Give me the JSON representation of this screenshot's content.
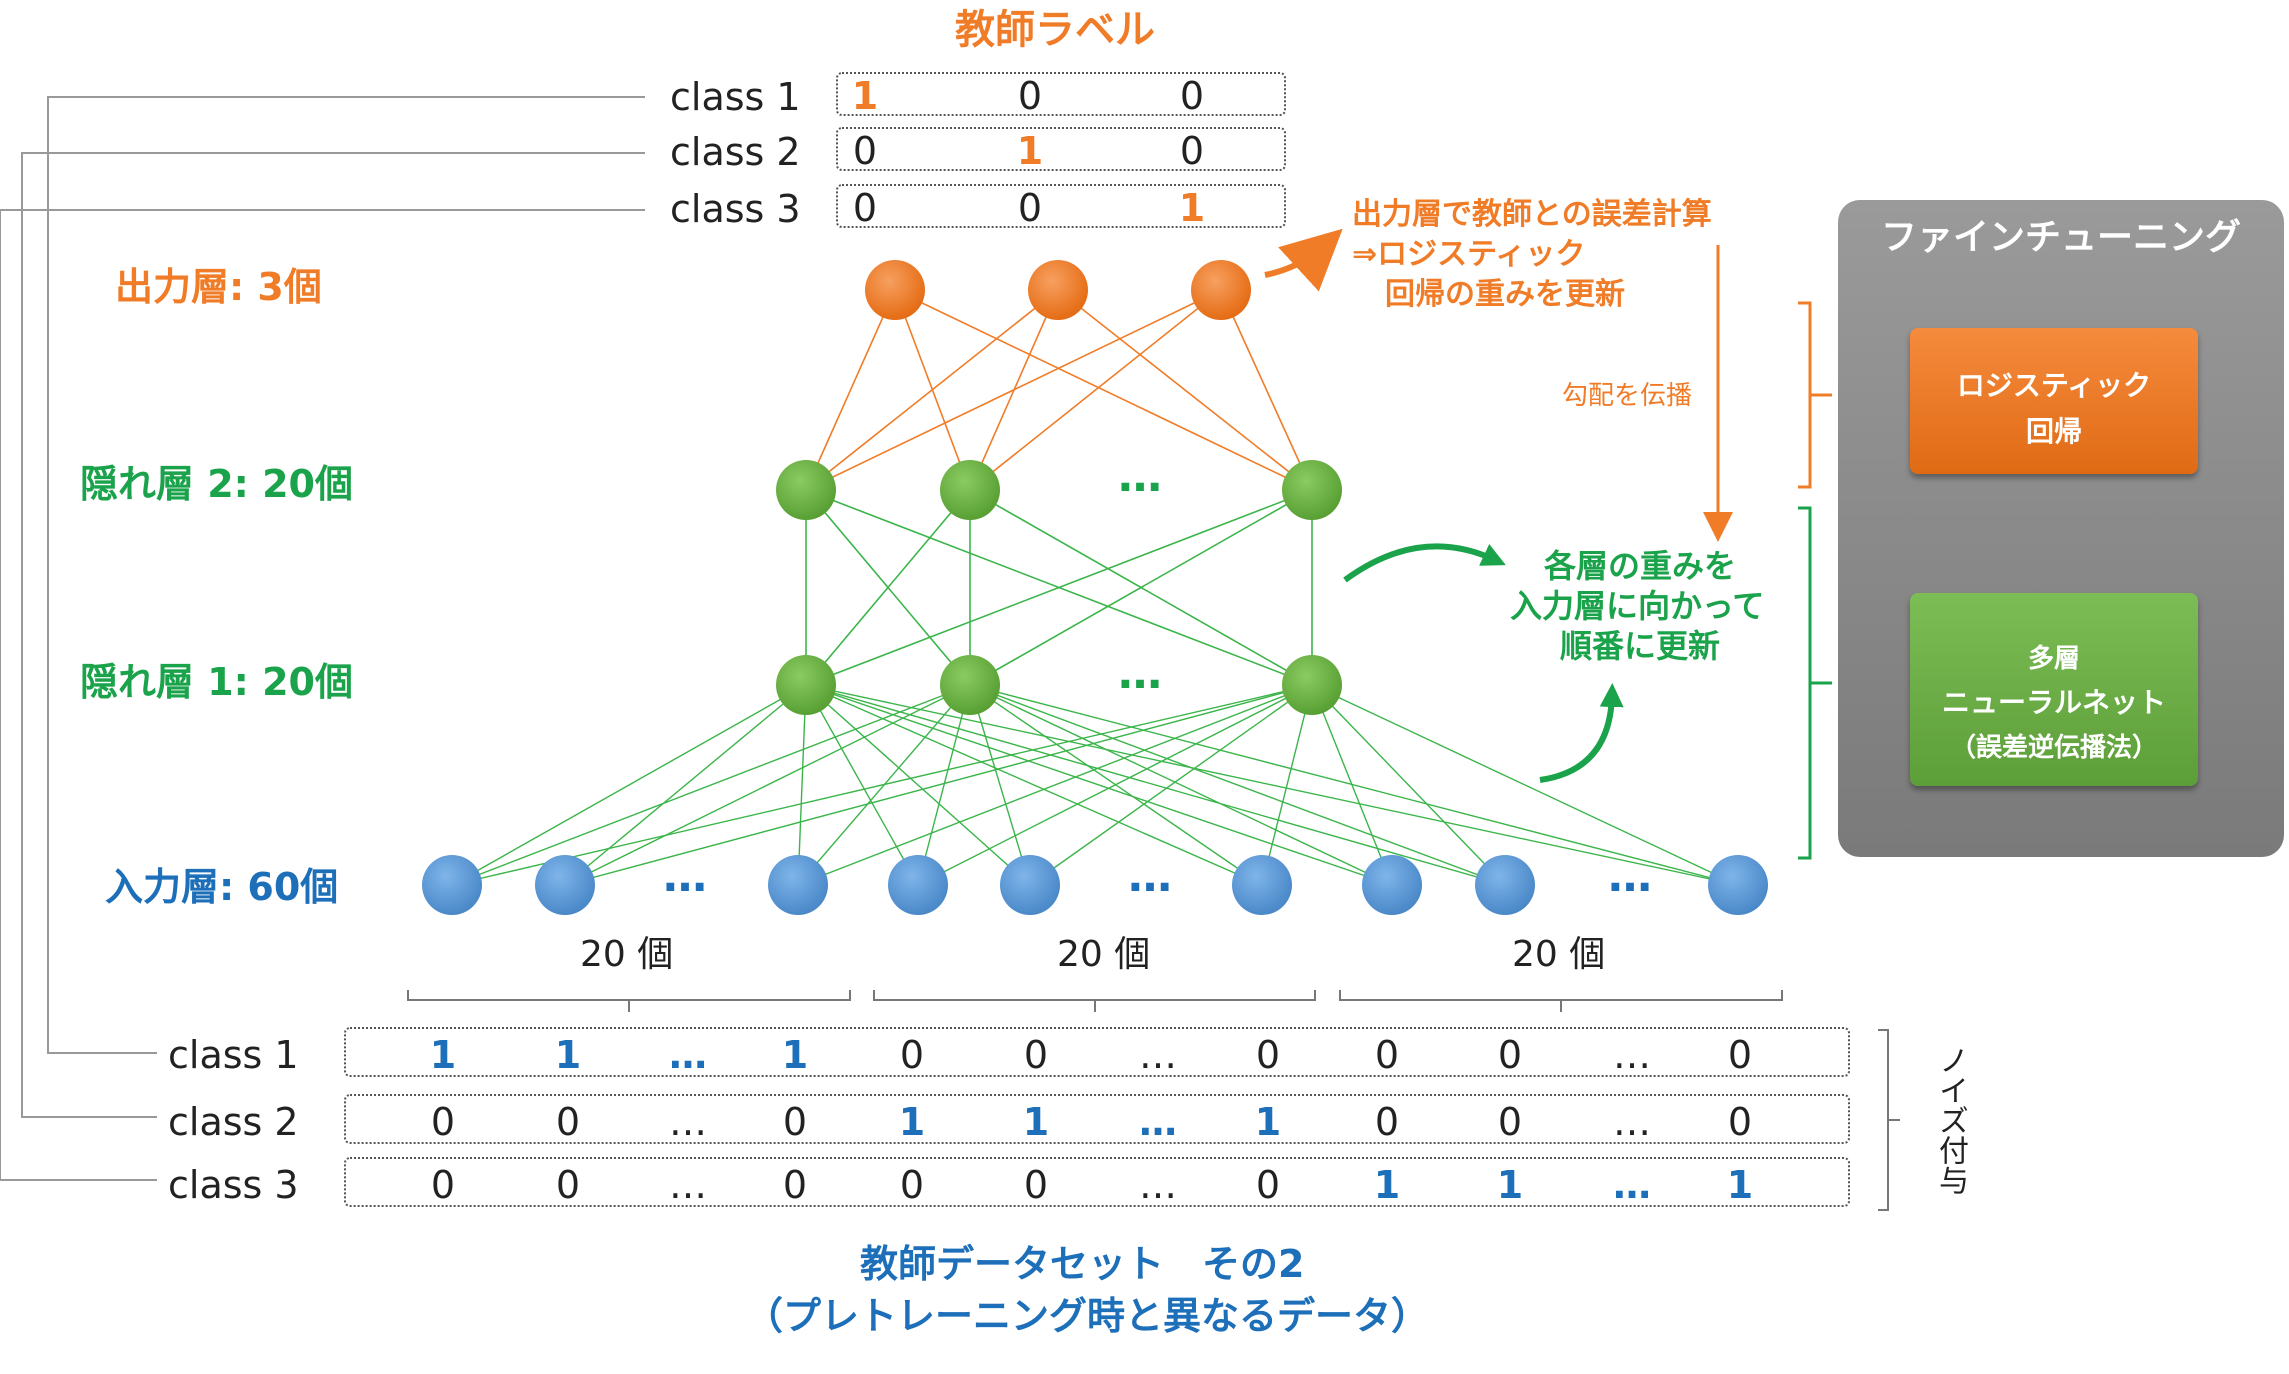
{
  "title_teacher_label": "教師ラベル",
  "teacher_labels": [
    {
      "label": "class 1",
      "values": [
        "1",
        "0",
        "0"
      ],
      "hot": 0
    },
    {
      "label": "class 2",
      "values": [
        "0",
        "1",
        "0"
      ],
      "hot": 1
    },
    {
      "label": "class 3",
      "values": [
        "0",
        "0",
        "1"
      ],
      "hot": 2
    }
  ],
  "layers": {
    "output": "出力層: 3個",
    "hidden2": "隠れ層 2: 20個",
    "hidden1": "隠れ層 1: 20個",
    "input": "入力層: 60個"
  },
  "ellipsis": "…",
  "group_counts": [
    "20 個",
    "20 個",
    "20 個"
  ],
  "annotations": {
    "output_error": [
      "出力層で教師との誤差計算",
      "⇒ロジスティック",
      "回帰の重みを更新"
    ],
    "gradient": "勾配を伝播",
    "update": [
      "各層の重みを",
      "入力層に向かって",
      "順番に更新"
    ]
  },
  "fine_tuning": {
    "title": "ファインチューニング",
    "logistic": [
      "ロジスティック",
      "回帰"
    ],
    "mlp": [
      "多層",
      "ニューラルネット",
      "（誤差逆伝播法）"
    ]
  },
  "dataset_rows": [
    {
      "label": "class 1",
      "values": [
        "1",
        "1",
        "…",
        "1",
        "0",
        "0",
        "…",
        "0",
        "0",
        "0",
        "…",
        "0"
      ],
      "hot_group": 0
    },
    {
      "label": "class 2",
      "values": [
        "0",
        "0",
        "…",
        "0",
        "1",
        "1",
        "…",
        "1",
        "0",
        "0",
        "…",
        "0"
      ],
      "hot_group": 1
    },
    {
      "label": "class 3",
      "values": [
        "0",
        "0",
        "…",
        "0",
        "0",
        "0",
        "…",
        "0",
        "1",
        "1",
        "…",
        "1"
      ],
      "hot_group": 2
    }
  ],
  "noise_label": "ノイズ付与",
  "dataset_title": [
    "教師データセット　その2",
    "（プレトレーニング時と異なるデータ）"
  ],
  "colors": {
    "orange": "#f07c28",
    "green": "#6bb04a",
    "blue": "#5b9bd5",
    "text_orange": "#f07c28",
    "text_green": "#1aa34a",
    "text_blue": "#1c6fb8",
    "panel": "#8a8a8a"
  }
}
